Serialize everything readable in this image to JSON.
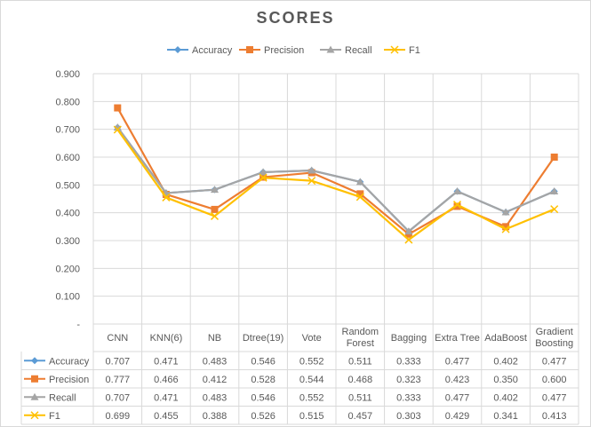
{
  "chart_data": {
    "type": "line",
    "title": "SCORES",
    "categories": [
      "CNN",
      "KNN(6)",
      "NB",
      "Dtree(19)",
      "Vote",
      "Random Forest",
      "Bagging",
      "Extra Tree",
      "AdaBoost",
      "Gradient Boosting"
    ],
    "category_lines": [
      [
        "CNN"
      ],
      [
        "KNN(6)"
      ],
      [
        "NB"
      ],
      [
        "Dtree(19)"
      ],
      [
        "Vote"
      ],
      [
        "Random",
        "Forest"
      ],
      [
        "Bagging"
      ],
      [
        "Extra Tree"
      ],
      [
        "AdaBoost"
      ],
      [
        "Gradient",
        "Boosting"
      ]
    ],
    "series": [
      {
        "name": "Accuracy",
        "color": "#5b9bd5",
        "marker": "diamond",
        "values": [
          0.707,
          0.471,
          0.483,
          0.546,
          0.552,
          0.511,
          0.333,
          0.477,
          0.402,
          0.477
        ]
      },
      {
        "name": "Precision",
        "color": "#ed7d31",
        "marker": "square",
        "values": [
          0.777,
          0.466,
          0.412,
          0.528,
          0.544,
          0.468,
          0.323,
          0.423,
          0.35,
          0.6
        ]
      },
      {
        "name": "Recall",
        "color": "#a5a5a5",
        "marker": "triangle",
        "values": [
          0.707,
          0.471,
          0.483,
          0.546,
          0.552,
          0.511,
          0.333,
          0.477,
          0.402,
          0.477
        ]
      },
      {
        "name": "F1",
        "color": "#ffc000",
        "marker": "x",
        "values": [
          0.699,
          0.455,
          0.388,
          0.526,
          0.515,
          0.457,
          0.303,
          0.429,
          0.341,
          0.413
        ]
      }
    ],
    "yticks": [
      "-",
      "0.100",
      "0.200",
      "0.300",
      "0.400",
      "0.500",
      "0.600",
      "0.700",
      "0.800",
      "0.900"
    ],
    "ylim": [
      0,
      0.9
    ],
    "legend": "top",
    "grid": true,
    "data_table": true,
    "xlabel": "",
    "ylabel": ""
  }
}
